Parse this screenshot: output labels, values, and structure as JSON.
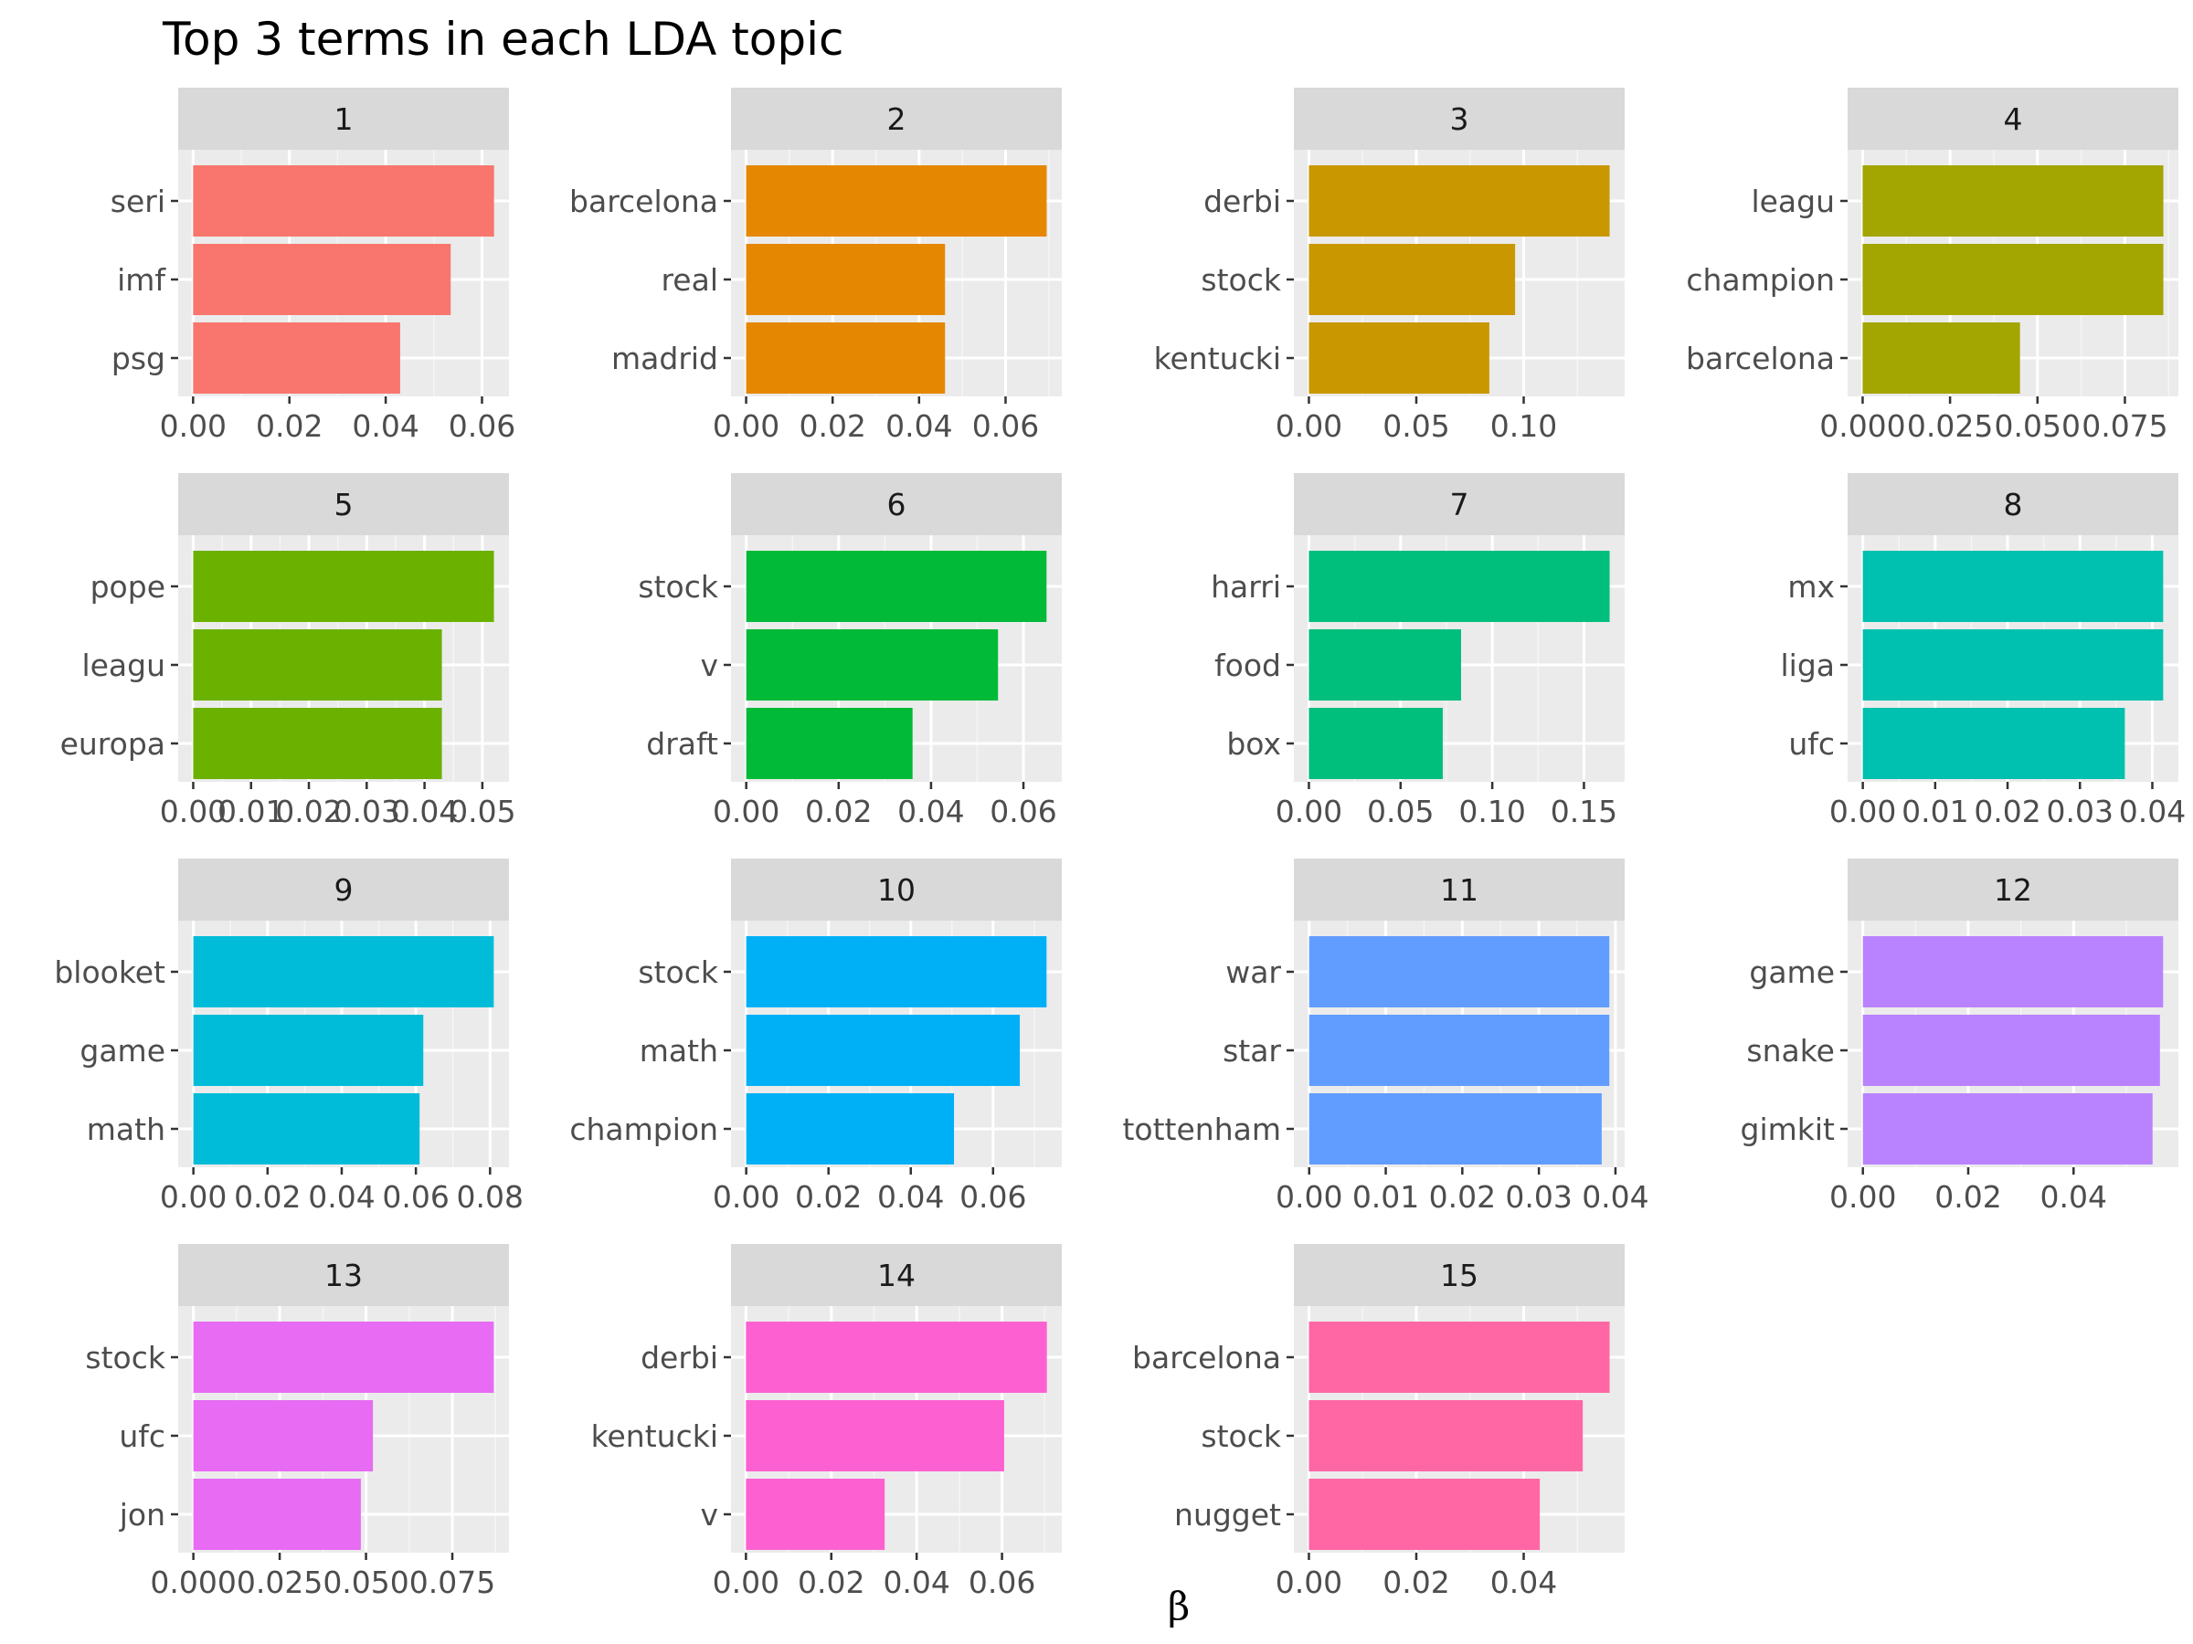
{
  "chart_data": {
    "type": "bar",
    "title": "Top 3 terms in each LDA topic",
    "xlabel": "β",
    "ylabel": "",
    "legend": "none",
    "grid": true,
    "facets": [
      {
        "name": "1",
        "color": "#F8766D",
        "terms": [
          "seri",
          "imf",
          "psg"
        ],
        "values": [
          0.0625,
          0.0535,
          0.043
        ],
        "xlim": [
          -0.0031,
          0.0656
        ],
        "ticks": [
          0,
          0.02,
          0.04,
          0.06
        ],
        "tick_labels": [
          "0.00",
          "0.02",
          "0.04",
          "0.06"
        ]
      },
      {
        "name": "2",
        "color": "#E58700",
        "terms": [
          "barcelona",
          "real",
          "madrid"
        ],
        "values": [
          0.0695,
          0.046,
          0.046
        ],
        "xlim": [
          -0.0035,
          0.073
        ],
        "ticks": [
          0,
          0.02,
          0.04,
          0.06
        ],
        "tick_labels": [
          "0.00",
          "0.02",
          "0.04",
          "0.06"
        ]
      },
      {
        "name": "3",
        "color": "#C99800",
        "terms": [
          "derbi",
          "stock",
          "kentucki"
        ],
        "values": [
          0.14,
          0.096,
          0.084
        ],
        "xlim": [
          -0.007,
          0.147
        ],
        "ticks": [
          0,
          0.05,
          0.1
        ],
        "tick_labels": [
          "0.00",
          "0.05",
          "0.10"
        ]
      },
      {
        "name": "4",
        "color": "#A3A500",
        "terms": [
          "leagu",
          "champion",
          "barcelona"
        ],
        "values": [
          0.086,
          0.086,
          0.045
        ],
        "xlim": [
          -0.0043,
          0.0903
        ],
        "ticks": [
          0,
          0.025,
          0.05,
          0.075
        ],
        "tick_labels": [
          "0.000",
          "0.025",
          "0.050",
          "0.075"
        ]
      },
      {
        "name": "5",
        "color": "#6BB100",
        "terms": [
          "pope",
          "leagu",
          "europa"
        ],
        "values": [
          0.052,
          0.043,
          0.043
        ],
        "xlim": [
          -0.0026,
          0.0546
        ],
        "ticks": [
          0,
          0.01,
          0.02,
          0.03,
          0.04,
          0.05
        ],
        "tick_labels": [
          "0.00",
          "0.01",
          "0.02",
          "0.03",
          "0.04",
          "0.05"
        ]
      },
      {
        "name": "6",
        "color": "#00BA38",
        "terms": [
          "stock",
          "v",
          "draft"
        ],
        "values": [
          0.065,
          0.0545,
          0.036
        ],
        "xlim": [
          -0.0033,
          0.0683
        ],
        "ticks": [
          0,
          0.02,
          0.04,
          0.06
        ],
        "tick_labels": [
          "0.00",
          "0.02",
          "0.04",
          "0.06"
        ]
      },
      {
        "name": "7",
        "color": "#00BF7D",
        "terms": [
          "harri",
          "food",
          "box"
        ],
        "values": [
          0.164,
          0.083,
          0.073
        ],
        "xlim": [
          -0.0082,
          0.1722
        ],
        "ticks": [
          0,
          0.05,
          0.1,
          0.15
        ],
        "tick_labels": [
          "0.00",
          "0.05",
          "0.10",
          "0.15"
        ]
      },
      {
        "name": "8",
        "color": "#00C0AF",
        "terms": [
          "mx",
          "liga",
          "ufc"
        ],
        "values": [
          0.0415,
          0.0415,
          0.0362
        ],
        "xlim": [
          -0.0021,
          0.0436
        ],
        "ticks": [
          0,
          0.01,
          0.02,
          0.03,
          0.04
        ],
        "tick_labels": [
          "0.00",
          "0.01",
          "0.02",
          "0.03",
          "0.04"
        ]
      },
      {
        "name": "9",
        "color": "#00BCD8",
        "terms": [
          "blooket",
          "game",
          "math"
        ],
        "values": [
          0.081,
          0.062,
          0.061
        ],
        "xlim": [
          -0.0041,
          0.0851
        ],
        "ticks": [
          0,
          0.02,
          0.04,
          0.06,
          0.08
        ],
        "tick_labels": [
          "0.00",
          "0.02",
          "0.04",
          "0.06",
          "0.08"
        ]
      },
      {
        "name": "10",
        "color": "#00B0F6",
        "terms": [
          "stock",
          "math",
          "champion"
        ],
        "values": [
          0.073,
          0.0665,
          0.0505
        ],
        "xlim": [
          -0.0037,
          0.0767
        ],
        "ticks": [
          0,
          0.02,
          0.04,
          0.06
        ],
        "tick_labels": [
          "0.00",
          "0.02",
          "0.04",
          "0.06"
        ]
      },
      {
        "name": "11",
        "color": "#619CFF",
        "terms": [
          "war",
          "star",
          "tottenham"
        ],
        "values": [
          0.0392,
          0.0392,
          0.0382
        ],
        "xlim": [
          -0.002,
          0.0412
        ],
        "ticks": [
          0,
          0.01,
          0.02,
          0.03,
          0.04
        ],
        "tick_labels": [
          "0.00",
          "0.01",
          "0.02",
          "0.03",
          "0.04"
        ]
      },
      {
        "name": "12",
        "color": "#B983FF",
        "terms": [
          "game",
          "snake",
          "gimkit"
        ],
        "values": [
          0.057,
          0.0564,
          0.055
        ],
        "xlim": [
          -0.0029,
          0.0599
        ],
        "ticks": [
          0,
          0.02,
          0.04
        ],
        "tick_labels": [
          "0.00",
          "0.02",
          "0.04"
        ]
      },
      {
        "name": "13",
        "color": "#E76BF3",
        "terms": [
          "stock",
          "ufc",
          "jon"
        ],
        "values": [
          0.087,
          0.052,
          0.0485
        ],
        "xlim": [
          -0.0044,
          0.0914
        ],
        "ticks": [
          0,
          0.025,
          0.05,
          0.075
        ],
        "tick_labels": [
          "0.000",
          "0.025",
          "0.050",
          "0.075"
        ]
      },
      {
        "name": "14",
        "color": "#FD61D1",
        "terms": [
          "derbi",
          "kentucki",
          "v"
        ],
        "values": [
          0.0705,
          0.0605,
          0.0325
        ],
        "xlim": [
          -0.0035,
          0.074
        ],
        "ticks": [
          0,
          0.02,
          0.04,
          0.06
        ],
        "tick_labels": [
          "0.00",
          "0.02",
          "0.04",
          "0.06"
        ]
      },
      {
        "name": "15",
        "color": "#FF67A4",
        "terms": [
          "barcelona",
          "stock",
          "nugget"
        ],
        "values": [
          0.056,
          0.051,
          0.043
        ],
        "xlim": [
          -0.0028,
          0.0588
        ],
        "ticks": [
          0,
          0.02,
          0.04
        ],
        "tick_labels": [
          "0.00",
          "0.02",
          "0.04"
        ]
      }
    ]
  }
}
